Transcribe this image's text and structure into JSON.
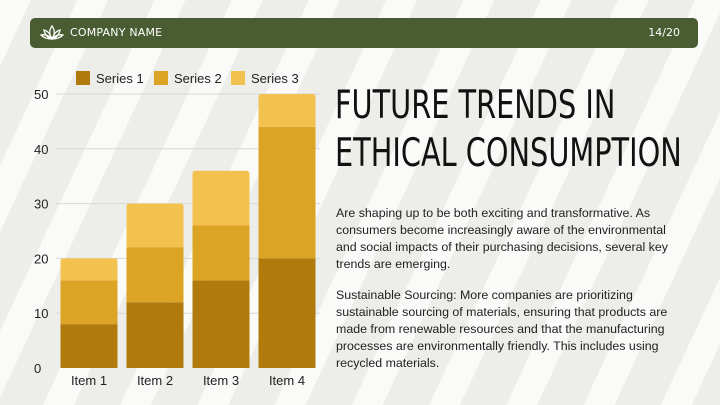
{
  "header": {
    "company": "COMPANY NAME",
    "page": "14/20"
  },
  "title": {
    "line1": "FUTURE TRENDS IN",
    "line2": "ETHICAL CONSUMPTION"
  },
  "body": {
    "p1": "Are shaping up to be both exciting and transformative. As consumers become increasingly aware of the environmental and social impacts of their purchasing decisions, several key trends are emerging.",
    "p2": "Sustainable Sourcing: More companies are prioritizing sustainable sourcing of materials, ensuring that products are made from renewable resources and that the manufacturing processes are environmentally friendly. This includes using recycled materials."
  },
  "colors": {
    "header_bg": "#4a5d32",
    "series1": "#b07a0c",
    "series2": "#dca425",
    "series3": "#f2c14e"
  },
  "chart_data": {
    "type": "bar",
    "stacked": true,
    "categories": [
      "Item 1",
      "Item 2",
      "Item 3",
      "Item 4"
    ],
    "series": [
      {
        "name": "Series 1",
        "values": [
          8,
          12,
          16,
          20
        ]
      },
      {
        "name": "Series 2",
        "values": [
          8,
          10,
          10,
          24
        ]
      },
      {
        "name": "Series 3",
        "values": [
          4,
          8,
          10,
          6
        ]
      }
    ],
    "ylim": [
      0,
      50
    ],
    "yticks": [
      0,
      10,
      20,
      30,
      40,
      50
    ],
    "grid": true,
    "legend": "top"
  }
}
